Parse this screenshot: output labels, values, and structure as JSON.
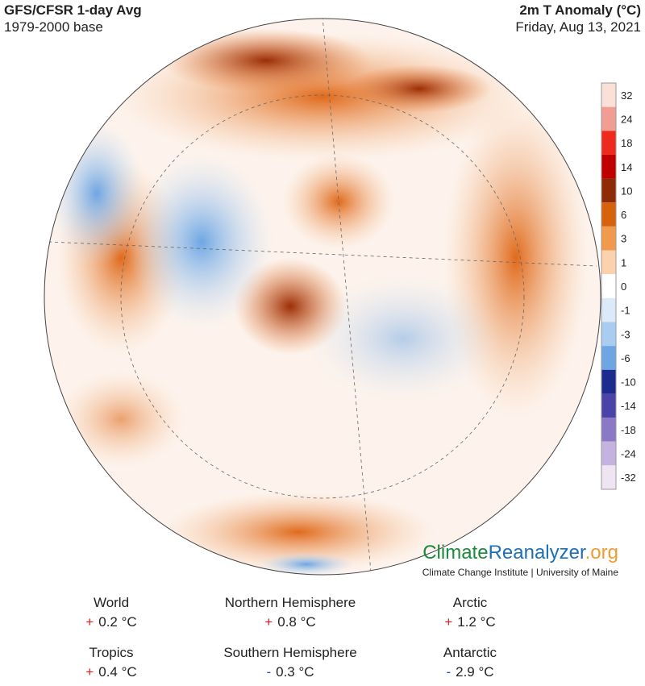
{
  "header": {
    "title": "GFS/CFSR 1-day Avg",
    "subtitle": "1979-2000 base",
    "variable": "2m T Anomaly (°C)",
    "date": "Friday, Aug 13, 2021"
  },
  "colorbar": [
    {
      "value": 32,
      "color": "#fbe0d8"
    },
    {
      "value": 24,
      "color": "#f29d94"
    },
    {
      "value": 18,
      "color": "#ee2a1e"
    },
    {
      "value": 14,
      "color": "#c00000"
    },
    {
      "value": 10,
      "color": "#8e2a06"
    },
    {
      "value": 6,
      "color": "#d8620c"
    },
    {
      "value": 3,
      "color": "#f29a4c"
    },
    {
      "value": 1,
      "color": "#fbd2ad"
    },
    {
      "value": 0,
      "color": "#ffffff"
    },
    {
      "value": -1,
      "color": "#dce9f8"
    },
    {
      "value": -3,
      "color": "#a9cdf1"
    },
    {
      "value": -6,
      "color": "#6ea6e4"
    },
    {
      "value": -10,
      "color": "#1d2a8e"
    },
    {
      "value": -14,
      "color": "#4a44a8"
    },
    {
      "value": -18,
      "color": "#8b79c6"
    },
    {
      "value": -24,
      "color": "#c4b2e0"
    },
    {
      "value": -32,
      "color": "#efe4f2"
    }
  ],
  "logo": {
    "part1": "Climate",
    "part2": "Reanalyzer",
    "part3": ".org",
    "credit": "Climate Change Institute | University of Maine"
  },
  "stats": [
    {
      "region": "World",
      "sign": "+",
      "value": "0.2 °C"
    },
    {
      "region": "Northern Hemisphere",
      "sign": "+",
      "value": "0.8 °C"
    },
    {
      "region": "Arctic",
      "sign": "+",
      "value": "1.2 °C"
    },
    {
      "region": "Tropics",
      "sign": "+",
      "value": "0.4 °C"
    },
    {
      "region": "Southern Hemisphere",
      "sign": "-",
      "value": "0.3 °C"
    },
    {
      "region": "Antarctic",
      "sign": "-",
      "value": "2.9 °C"
    }
  ]
}
